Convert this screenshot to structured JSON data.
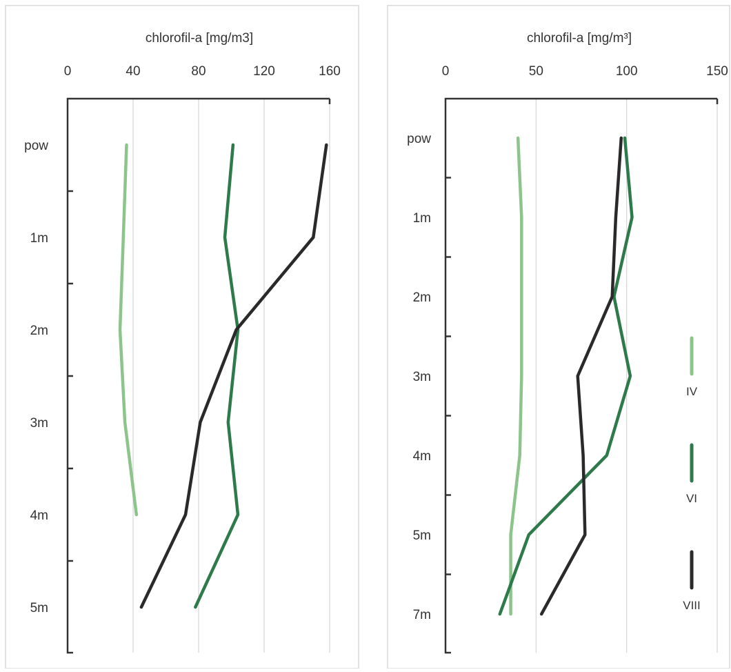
{
  "chart_data": [
    {
      "type": "line",
      "title": "chlorofil-a [mg/m3]",
      "xlabel": "chlorofil-a [mg/m3]",
      "ylabel": "",
      "x_axis_position": "top",
      "xlim": [
        0,
        160
      ],
      "x_ticks": [
        "0",
        "40",
        "80",
        "120",
        "160"
      ],
      "y_inverted": true,
      "y_categories": [
        "pow",
        "1m",
        "2m",
        "3m",
        "4m",
        "5m"
      ],
      "grid": "vertical",
      "legend": "none",
      "series": [
        {
          "key": "IV",
          "color": "#8cc48c",
          "x": [
            36,
            34,
            32,
            35,
            42
          ],
          "y": [
            "pow",
            "1m",
            "2m",
            "3m",
            "4m"
          ]
        },
        {
          "key": "VI",
          "color": "#2e7a4a",
          "x": [
            101,
            96,
            104,
            98,
            104,
            78
          ],
          "y": [
            "pow",
            "1m",
            "2m",
            "3m",
            "4m",
            "5m"
          ]
        },
        {
          "key": "VIII",
          "color": "#2a2a2a",
          "x": [
            158,
            150,
            103,
            81,
            72,
            45
          ],
          "y": [
            "pow",
            "1m",
            "2m",
            "3m",
            "4m",
            "5m"
          ]
        }
      ]
    },
    {
      "type": "line",
      "title": "chlorofil-a [mg/m³]",
      "xlabel": "chlorofil-a [mg/m³]",
      "ylabel": "",
      "x_axis_position": "top",
      "xlim": [
        0,
        150
      ],
      "x_ticks": [
        "0",
        "50",
        "100",
        "150"
      ],
      "y_inverted": true,
      "y_categories": [
        "pow",
        "1m",
        "2m",
        "3m",
        "4m",
        "5m",
        "7m"
      ],
      "grid": "vertical",
      "legend": "right",
      "series": [
        {
          "name": "IV",
          "color": "#8cc48c",
          "x": [
            40,
            42,
            42,
            42,
            41,
            36,
            36
          ],
          "y": [
            "pow",
            "1m",
            "2m",
            "3m",
            "4m",
            "5m",
            "7m"
          ]
        },
        {
          "name": "VI",
          "color": "#2e7a4a",
          "x": [
            99,
            103,
            93,
            102,
            89,
            46,
            30
          ],
          "y": [
            "pow",
            "1m",
            "2m",
            "3m",
            "4m",
            "5m",
            "7m"
          ]
        },
        {
          "name": "VIII",
          "color": "#2a2a2a",
          "x": [
            97,
            94,
            92,
            73,
            76,
            77,
            53
          ],
          "y": [
            "pow",
            "1m",
            "2m",
            "3m",
            "4m",
            "5m",
            "7m"
          ]
        }
      ]
    }
  ]
}
